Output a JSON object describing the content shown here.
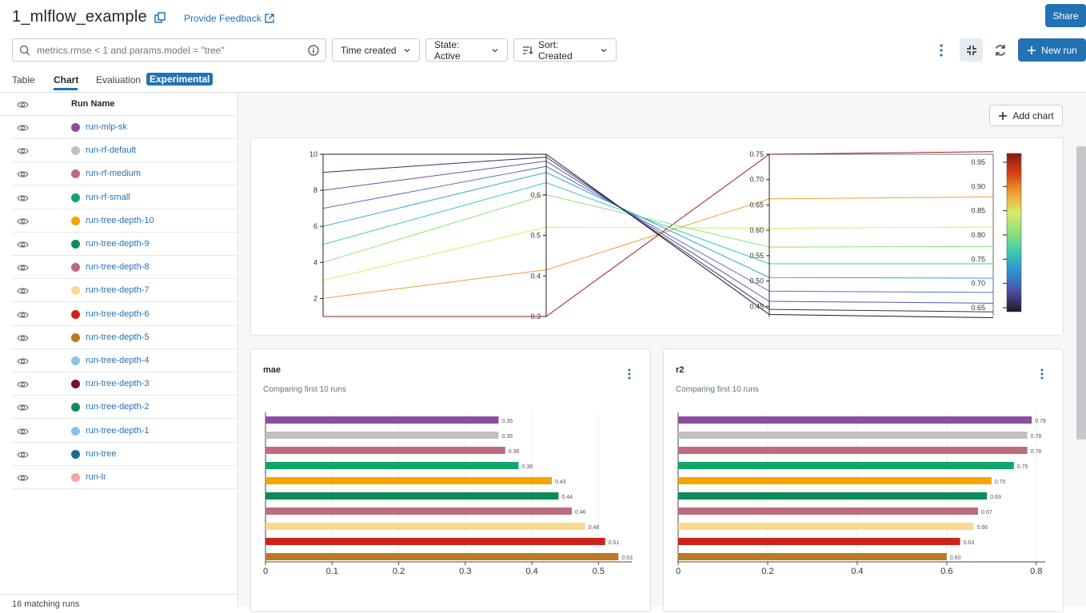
{
  "header": {
    "title": "1_mlflow_example",
    "feedback_label": "Provide Feedback",
    "share_label": "Share"
  },
  "toolbar": {
    "search_placeholder": "metrics.rmse < 1 and params.model = \"tree\"",
    "time_label": "Time created",
    "state_label": "State: Active",
    "sort_label": "Sort: Created",
    "new_run_label": "New run"
  },
  "tabs": {
    "table": "Table",
    "chart": "Chart",
    "evaluation": "Evaluation",
    "experimental": "Experimental"
  },
  "sidebar": {
    "header": "Run Name",
    "runs": [
      {
        "name": "run-mlp-sk",
        "color": "#8e4d9e"
      },
      {
        "name": "run-rf-default",
        "color": "#c0c0c0"
      },
      {
        "name": "run-rf-medium",
        "color": "#bb6d7d"
      },
      {
        "name": "run-rf-small",
        "color": "#11a56b"
      },
      {
        "name": "run-tree-depth-10",
        "color": "#f5a500"
      },
      {
        "name": "run-tree-depth-9",
        "color": "#0a8b5a"
      },
      {
        "name": "run-tree-depth-8",
        "color": "#bb6d7d"
      },
      {
        "name": "run-tree-depth-7",
        "color": "#f9d990"
      },
      {
        "name": "run-tree-depth-6",
        "color": "#d0221b"
      },
      {
        "name": "run-tree-depth-5",
        "color": "#b97a22"
      },
      {
        "name": "run-tree-depth-4",
        "color": "#86c3e4"
      },
      {
        "name": "run-tree-depth-3",
        "color": "#7a0f2c"
      },
      {
        "name": "run-tree-depth-2",
        "color": "#0a8b5a"
      },
      {
        "name": "run-tree-depth-1",
        "color": "#86c3e4"
      },
      {
        "name": "run-tree",
        "color": "#1d6b91"
      },
      {
        "name": "run-lr",
        "color": "#f2a3a8"
      }
    ],
    "footer": "16 matching runs"
  },
  "main": {
    "add_chart_label": "Add chart"
  },
  "chart_data": [
    {
      "type": "parallel-coordinates",
      "axes": [
        {
          "ticks": [
            "2",
            "4",
            "6",
            "8",
            "10"
          ],
          "range": [
            1,
            10
          ]
        },
        {
          "ticks": [
            "0.3",
            "0.4",
            "0.5",
            "0.6"
          ],
          "range": [
            0.3,
            0.7
          ]
        },
        {
          "ticks": [
            "0.45",
            "0.50",
            "0.55",
            "0.60",
            "0.65",
            "0.70",
            "0.75"
          ],
          "range": [
            0.43,
            0.75
          ]
        }
      ],
      "colorbar_ticks": [
        "0.65",
        "0.70",
        "0.75",
        "0.80",
        "0.85",
        "0.90",
        "0.95"
      ],
      "lines": [
        {
          "values": [
            1,
            0.3,
            0.75
          ],
          "color": "#9b1e1e"
        },
        {
          "values": [
            2,
            0.415,
            0.662
          ],
          "color": "#f0a030"
        },
        {
          "values": [
            3,
            0.52,
            0.604
          ],
          "color": "#d5ec6a"
        },
        {
          "values": [
            4,
            0.6,
            0.567
          ],
          "color": "#8fe07a"
        },
        {
          "values": [
            5,
            0.63,
            0.534
          ],
          "color": "#3cc8b4"
        },
        {
          "values": [
            6,
            0.655,
            0.507
          ],
          "color": "#35a2d6"
        },
        {
          "values": [
            7,
            0.67,
            0.48
          ],
          "color": "#4f73c9"
        },
        {
          "values": [
            8,
            0.683,
            0.46
          ],
          "color": "#5f54a8"
        },
        {
          "values": [
            9,
            0.693,
            0.444
          ],
          "color": "#3a2f5a"
        },
        {
          "values": [
            10,
            0.7,
            0.434
          ],
          "color": "#1a1a22"
        }
      ]
    },
    {
      "type": "bar",
      "orientation": "horizontal",
      "title": "mae",
      "subtitle": "Comparing first 10 runs",
      "values": [
        0.35,
        0.35,
        0.36,
        0.38,
        0.43,
        0.44,
        0.46,
        0.48,
        0.51,
        0.53
      ],
      "value_labels": [
        "0.35",
        "0.35",
        "0.36",
        "0.38",
        "0.43",
        "0.44",
        "0.46",
        "0.48",
        "0.51",
        "0.53"
      ],
      "colors": [
        "#8e4d9e",
        "#c0c0c0",
        "#bb6d7d",
        "#11a56b",
        "#f5a500",
        "#0a8b5a",
        "#bb6d7d",
        "#f9d990",
        "#d0221b",
        "#b97a22"
      ],
      "xticks": [
        "0",
        "0.1",
        "0.2",
        "0.3",
        "0.4",
        "0.5"
      ],
      "xlim": [
        0,
        0.55
      ]
    },
    {
      "type": "bar",
      "orientation": "horizontal",
      "title": "r2",
      "subtitle": "Comparing first 10 runs",
      "values": [
        0.79,
        0.78,
        0.78,
        0.75,
        0.7,
        0.69,
        0.67,
        0.66,
        0.63,
        0.6
      ],
      "value_labels": [
        "0.79",
        "0.78",
        "0.78",
        "0.75",
        "0.70",
        "0.69",
        "0.67",
        "0.66",
        "0.63",
        "0.60"
      ],
      "colors": [
        "#8e4d9e",
        "#c0c0c0",
        "#bb6d7d",
        "#11a56b",
        "#f5a500",
        "#0a8b5a",
        "#bb6d7d",
        "#f9d990",
        "#d0221b",
        "#b97a22"
      ],
      "xticks": [
        "0",
        "0.2",
        "0.4",
        "0.6",
        "0.8"
      ],
      "xlim": [
        0,
        0.82
      ]
    }
  ]
}
